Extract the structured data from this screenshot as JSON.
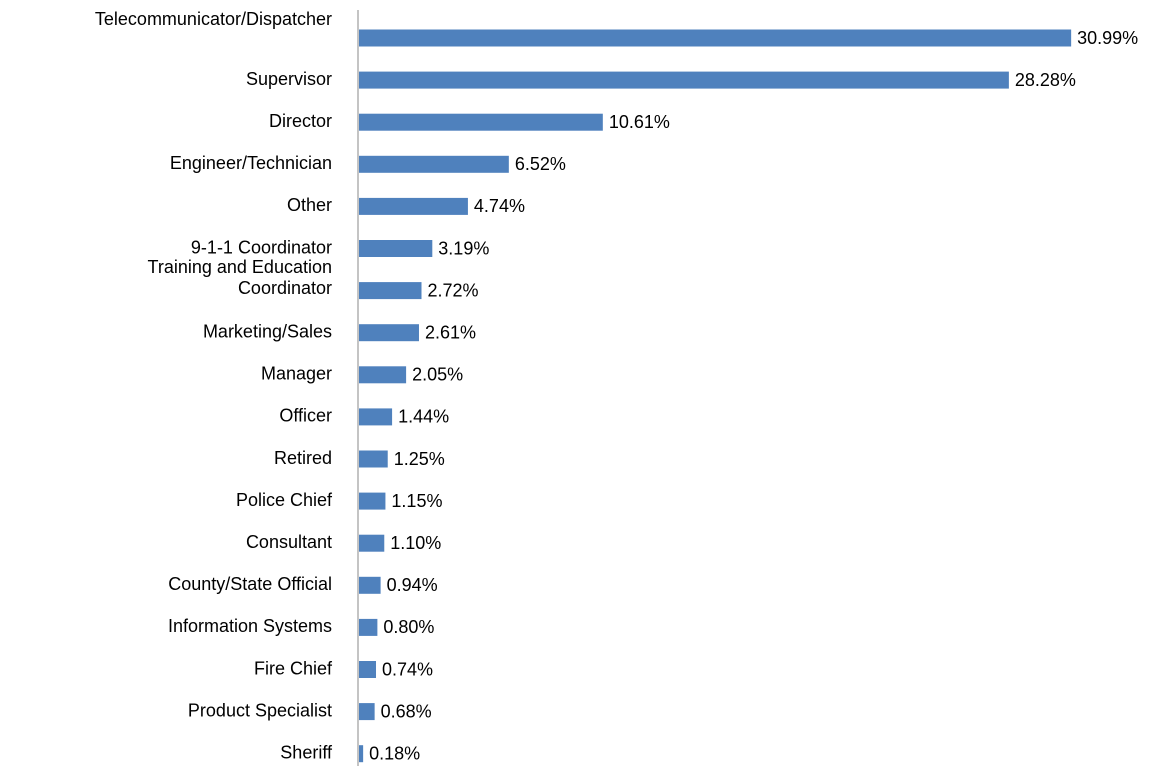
{
  "chart_data": {
    "type": "bar",
    "orientation": "horizontal",
    "color": "#4f81bd",
    "categories": [
      "Telecommunicator/Dispatcher",
      "Supervisor",
      "Director",
      "Engineer/Technician",
      "Other",
      "9-1-1 Coordinator",
      "Training and Education Coordinator",
      "Marketing/Sales",
      "Manager",
      "Officer",
      "Retired",
      "Police Chief",
      "Consultant",
      "County/State Official",
      "Information Systems",
      "Fire Chief",
      "Product Specialist",
      "Sheriff"
    ],
    "values": [
      30.99,
      28.28,
      10.61,
      6.52,
      4.74,
      3.19,
      2.72,
      2.61,
      2.05,
      1.44,
      1.25,
      1.15,
      1.1,
      0.94,
      0.8,
      0.74,
      0.68,
      0.18
    ],
    "value_labels": [
      "30.99%",
      "28.28%",
      "10.61%",
      "6.52%",
      "4.74%",
      "3.19%",
      "2.72%",
      "2.61%",
      "2.05%",
      "1.44%",
      "1.25%",
      "1.15%",
      "1.10%",
      "0.94%",
      "0.80%",
      "0.74%",
      "0.68%",
      "0.18%"
    ]
  }
}
